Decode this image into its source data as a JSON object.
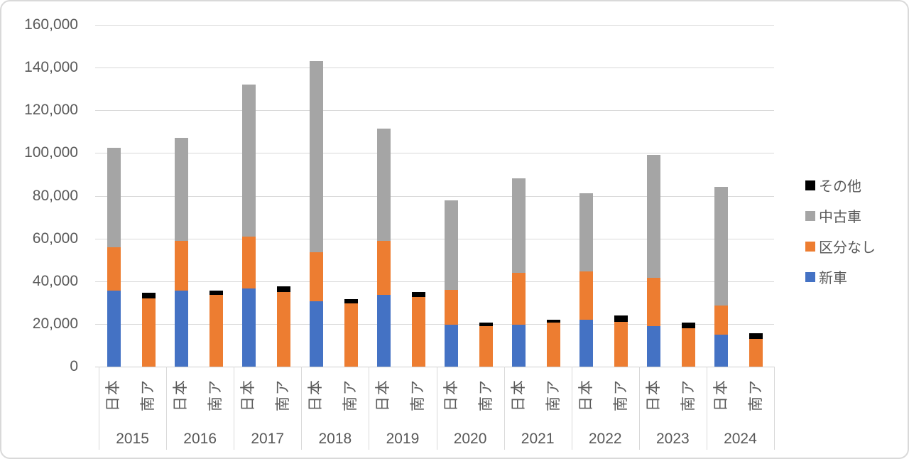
{
  "colors": {
    "new_car": "#4472C4",
    "unclassified": "#ED7D31",
    "used_car": "#A5A5A5",
    "other": "#000000",
    "gridline": "#D9D9D9",
    "axis_text": "#595959"
  },
  "legend": [
    {
      "label": "その他",
      "color": "#000000"
    },
    {
      "label": "中古車",
      "color": "#A5A5A5"
    },
    {
      "label": "区分なし",
      "color": "#ED7D31"
    },
    {
      "label": "新車",
      "color": "#4472C4"
    }
  ],
  "chart_data": {
    "type": "bar",
    "stacked": true,
    "orientation": "vertical",
    "title": "",
    "xlabel": "",
    "ylabel": "",
    "ylim": [
      0,
      160000
    ],
    "y_tick_step": 20000,
    "y_tick_labels": [
      "0",
      "20,000",
      "40,000",
      "60,000",
      "80,000",
      "100,000",
      "120,000",
      "140,000",
      "160,000"
    ],
    "grid": "horizontal",
    "legend_position": "right",
    "group_categories": [
      "2015",
      "2016",
      "2017",
      "2018",
      "2019",
      "2020",
      "2021",
      "2022",
      "2023",
      "2024"
    ],
    "bar_categories": [
      "日本",
      "南ア"
    ],
    "stack_order_bottom_to_top": [
      "新車",
      "区分なし",
      "中古車",
      "その他"
    ],
    "series": [
      {
        "name": "新車",
        "color": "#4472C4",
        "values": [
          [
            35500,
            0
          ],
          [
            35500,
            0
          ],
          [
            36500,
            0
          ],
          [
            30500,
            0
          ],
          [
            33500,
            0
          ],
          [
            19500,
            0
          ],
          [
            19500,
            0
          ],
          [
            22000,
            0
          ],
          [
            19000,
            0
          ],
          [
            15000,
            0
          ]
        ]
      },
      {
        "name": "区分なし",
        "color": "#ED7D31",
        "values": [
          [
            20500,
            32000
          ],
          [
            23500,
            33500
          ],
          [
            24500,
            35000
          ],
          [
            23000,
            29500
          ],
          [
            25500,
            32500
          ],
          [
            16500,
            19000
          ],
          [
            24500,
            20500
          ],
          [
            22500,
            21000
          ],
          [
            22500,
            18000
          ],
          [
            13500,
            13000
          ]
        ]
      },
      {
        "name": "中古車",
        "color": "#A5A5A5",
        "values": [
          [
            46500,
            0
          ],
          [
            48000,
            0
          ],
          [
            71000,
            0
          ],
          [
            89500,
            0
          ],
          [
            52500,
            0
          ],
          [
            42000,
            0
          ],
          [
            44000,
            0
          ],
          [
            36500,
            0
          ],
          [
            57500,
            0
          ],
          [
            55500,
            0
          ]
        ]
      },
      {
        "name": "その他",
        "color": "#000000",
        "values": [
          [
            0,
            2500
          ],
          [
            0,
            2000
          ],
          [
            0,
            2500
          ],
          [
            0,
            2000
          ],
          [
            0,
            2500
          ],
          [
            0,
            1500
          ],
          [
            0,
            1500
          ],
          [
            0,
            3000
          ],
          [
            0,
            2500
          ],
          [
            0,
            2500
          ]
        ]
      }
    ]
  },
  "layout_totals_note": ""
}
